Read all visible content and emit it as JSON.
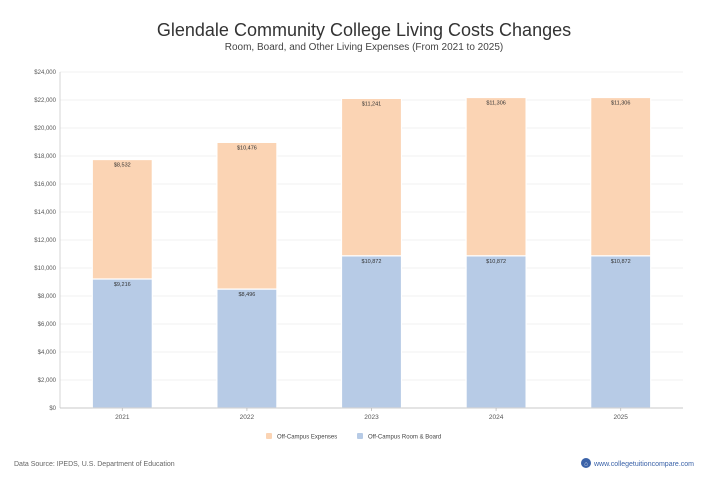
{
  "chart_data": {
    "type": "bar",
    "stacked": true,
    "title": "Glendale Community College Living Costs Changes",
    "subtitle": "Room, Board, and Other Living Expenses (From 2021 to 2025)",
    "categories": [
      "2021",
      "2022",
      "2023",
      "2024",
      "2025"
    ],
    "series": [
      {
        "name": "Off-Campus Room & Board",
        "color": "#b7cbe6",
        "values": [
          9216,
          8496,
          10872,
          10872,
          10872
        ],
        "labels": [
          "$9,216",
          "$8,496",
          "$10,872",
          "$10,872",
          "$10,872"
        ]
      },
      {
        "name": "Off-Campus Expenses",
        "color": "#fbd4b4",
        "values": [
          8532,
          10476,
          11241,
          11306,
          11306
        ],
        "labels": [
          "$8,532",
          "$10,476",
          "$11,241",
          "$11,306",
          "$11,306"
        ]
      }
    ],
    "ylim": [
      0,
      24000
    ],
    "yticks": [
      0,
      2000,
      4000,
      6000,
      8000,
      10000,
      12000,
      14000,
      16000,
      18000,
      20000,
      22000,
      24000
    ],
    "ytick_labels": [
      "$0",
      "$2,000",
      "$4,000",
      "$6,000",
      "$8,000",
      "$10,000",
      "$12,000",
      "$14,000",
      "$16,000",
      "$18,000",
      "$20,000",
      "$22,000",
      "$24,000"
    ],
    "grid": true,
    "legend": {
      "position": "bottom-center",
      "order": [
        "Off-Campus Expenses",
        "Off-Campus Room & Board"
      ]
    }
  },
  "footer": {
    "source": "Data Source: IPEDS, U.S. Department of Education",
    "brand": "www.collegetuitioncompare.com"
  }
}
